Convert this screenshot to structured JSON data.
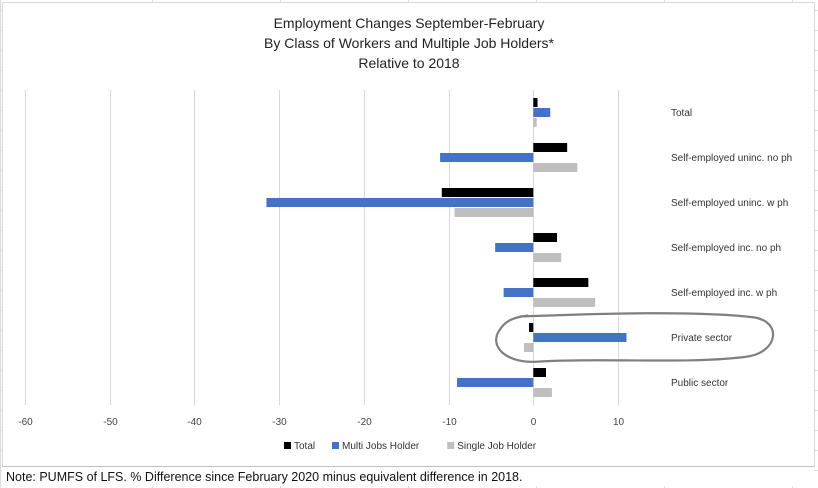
{
  "chart_data": {
    "type": "bar",
    "orientation": "horizontal",
    "title": [
      "Employment Changes September-February",
      "By Class of Workers and Multiple Job Holders*",
      "Relative to 2018"
    ],
    "categories": [
      "Total",
      "Self-employed uninc. no ph",
      "Self-employed uninc. w ph",
      "Self-employed inc. no ph",
      "Self-employed inc. w ph",
      "Private sector",
      "Public sector"
    ],
    "series": [
      {
        "name": "Total",
        "color": "#000000",
        "values": [
          0.5,
          4.0,
          -10.8,
          2.8,
          6.5,
          -0.5,
          1.5
        ]
      },
      {
        "name": "Multi Jobs Holder",
        "color": "#4472c4",
        "values": [
          2.0,
          -11.0,
          -31.5,
          -4.5,
          -3.5,
          11.0,
          -9.0
        ]
      },
      {
        "name": "Single Job Holder",
        "color": "#bfbfbf",
        "values": [
          0.4,
          5.2,
          -9.3,
          3.3,
          7.3,
          -1.1,
          2.2
        ]
      }
    ],
    "xlim": [
      -60,
      10
    ],
    "x_ticks": [
      "-60",
      "-50",
      "-40",
      "-30",
      "-20",
      "-10",
      "0",
      "10"
    ],
    "gridlines": "vertical",
    "legend": "bottom",
    "annotation": "hand-drawn ellipse around Private sector"
  },
  "note": "Note: PUMFS of LFS. % Difference since February 2020 minus equivalent difference in 2018."
}
